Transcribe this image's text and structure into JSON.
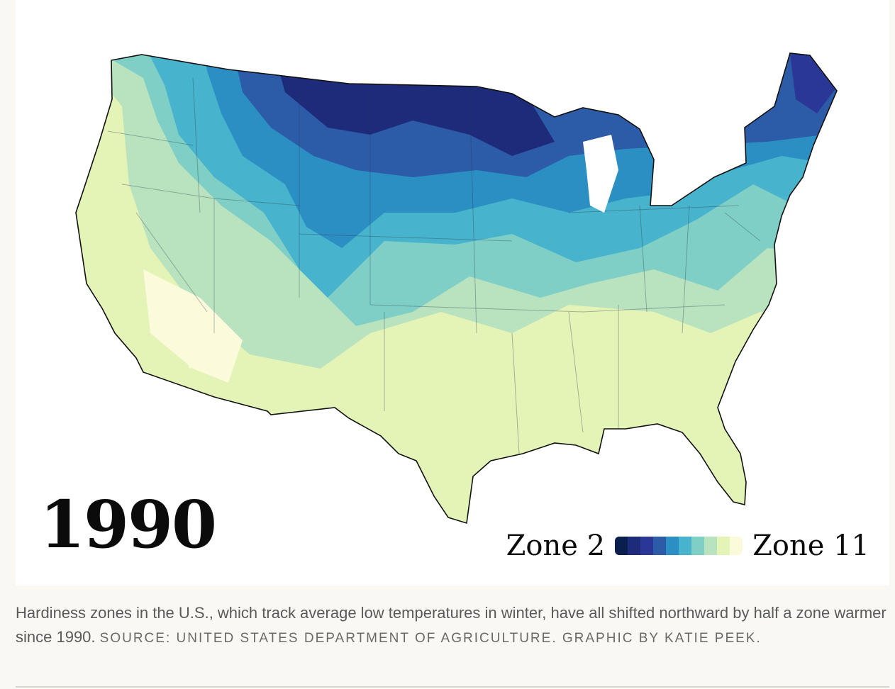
{
  "map": {
    "year": "1990",
    "legend": {
      "low_label": "Zone 2",
      "high_label": "Zone 11",
      "colors": [
        "#0b1f4f",
        "#1e2a7a",
        "#2b3796",
        "#2c5ba8",
        "#2b8fc3",
        "#48b3cc",
        "#7fcfc7",
        "#b8e3be",
        "#e4f3b6",
        "#fbfbdc"
      ]
    }
  },
  "caption": {
    "text": "Hardiness zones in the U.S., which track average low temperatures in winter, have all shifted northward by half a zone warmer since 1990.",
    "credit": "SOURCE: UNITED STATES DEPARTMENT OF AGRICULTURE. GRAPHIC BY KATIE PEEK."
  }
}
